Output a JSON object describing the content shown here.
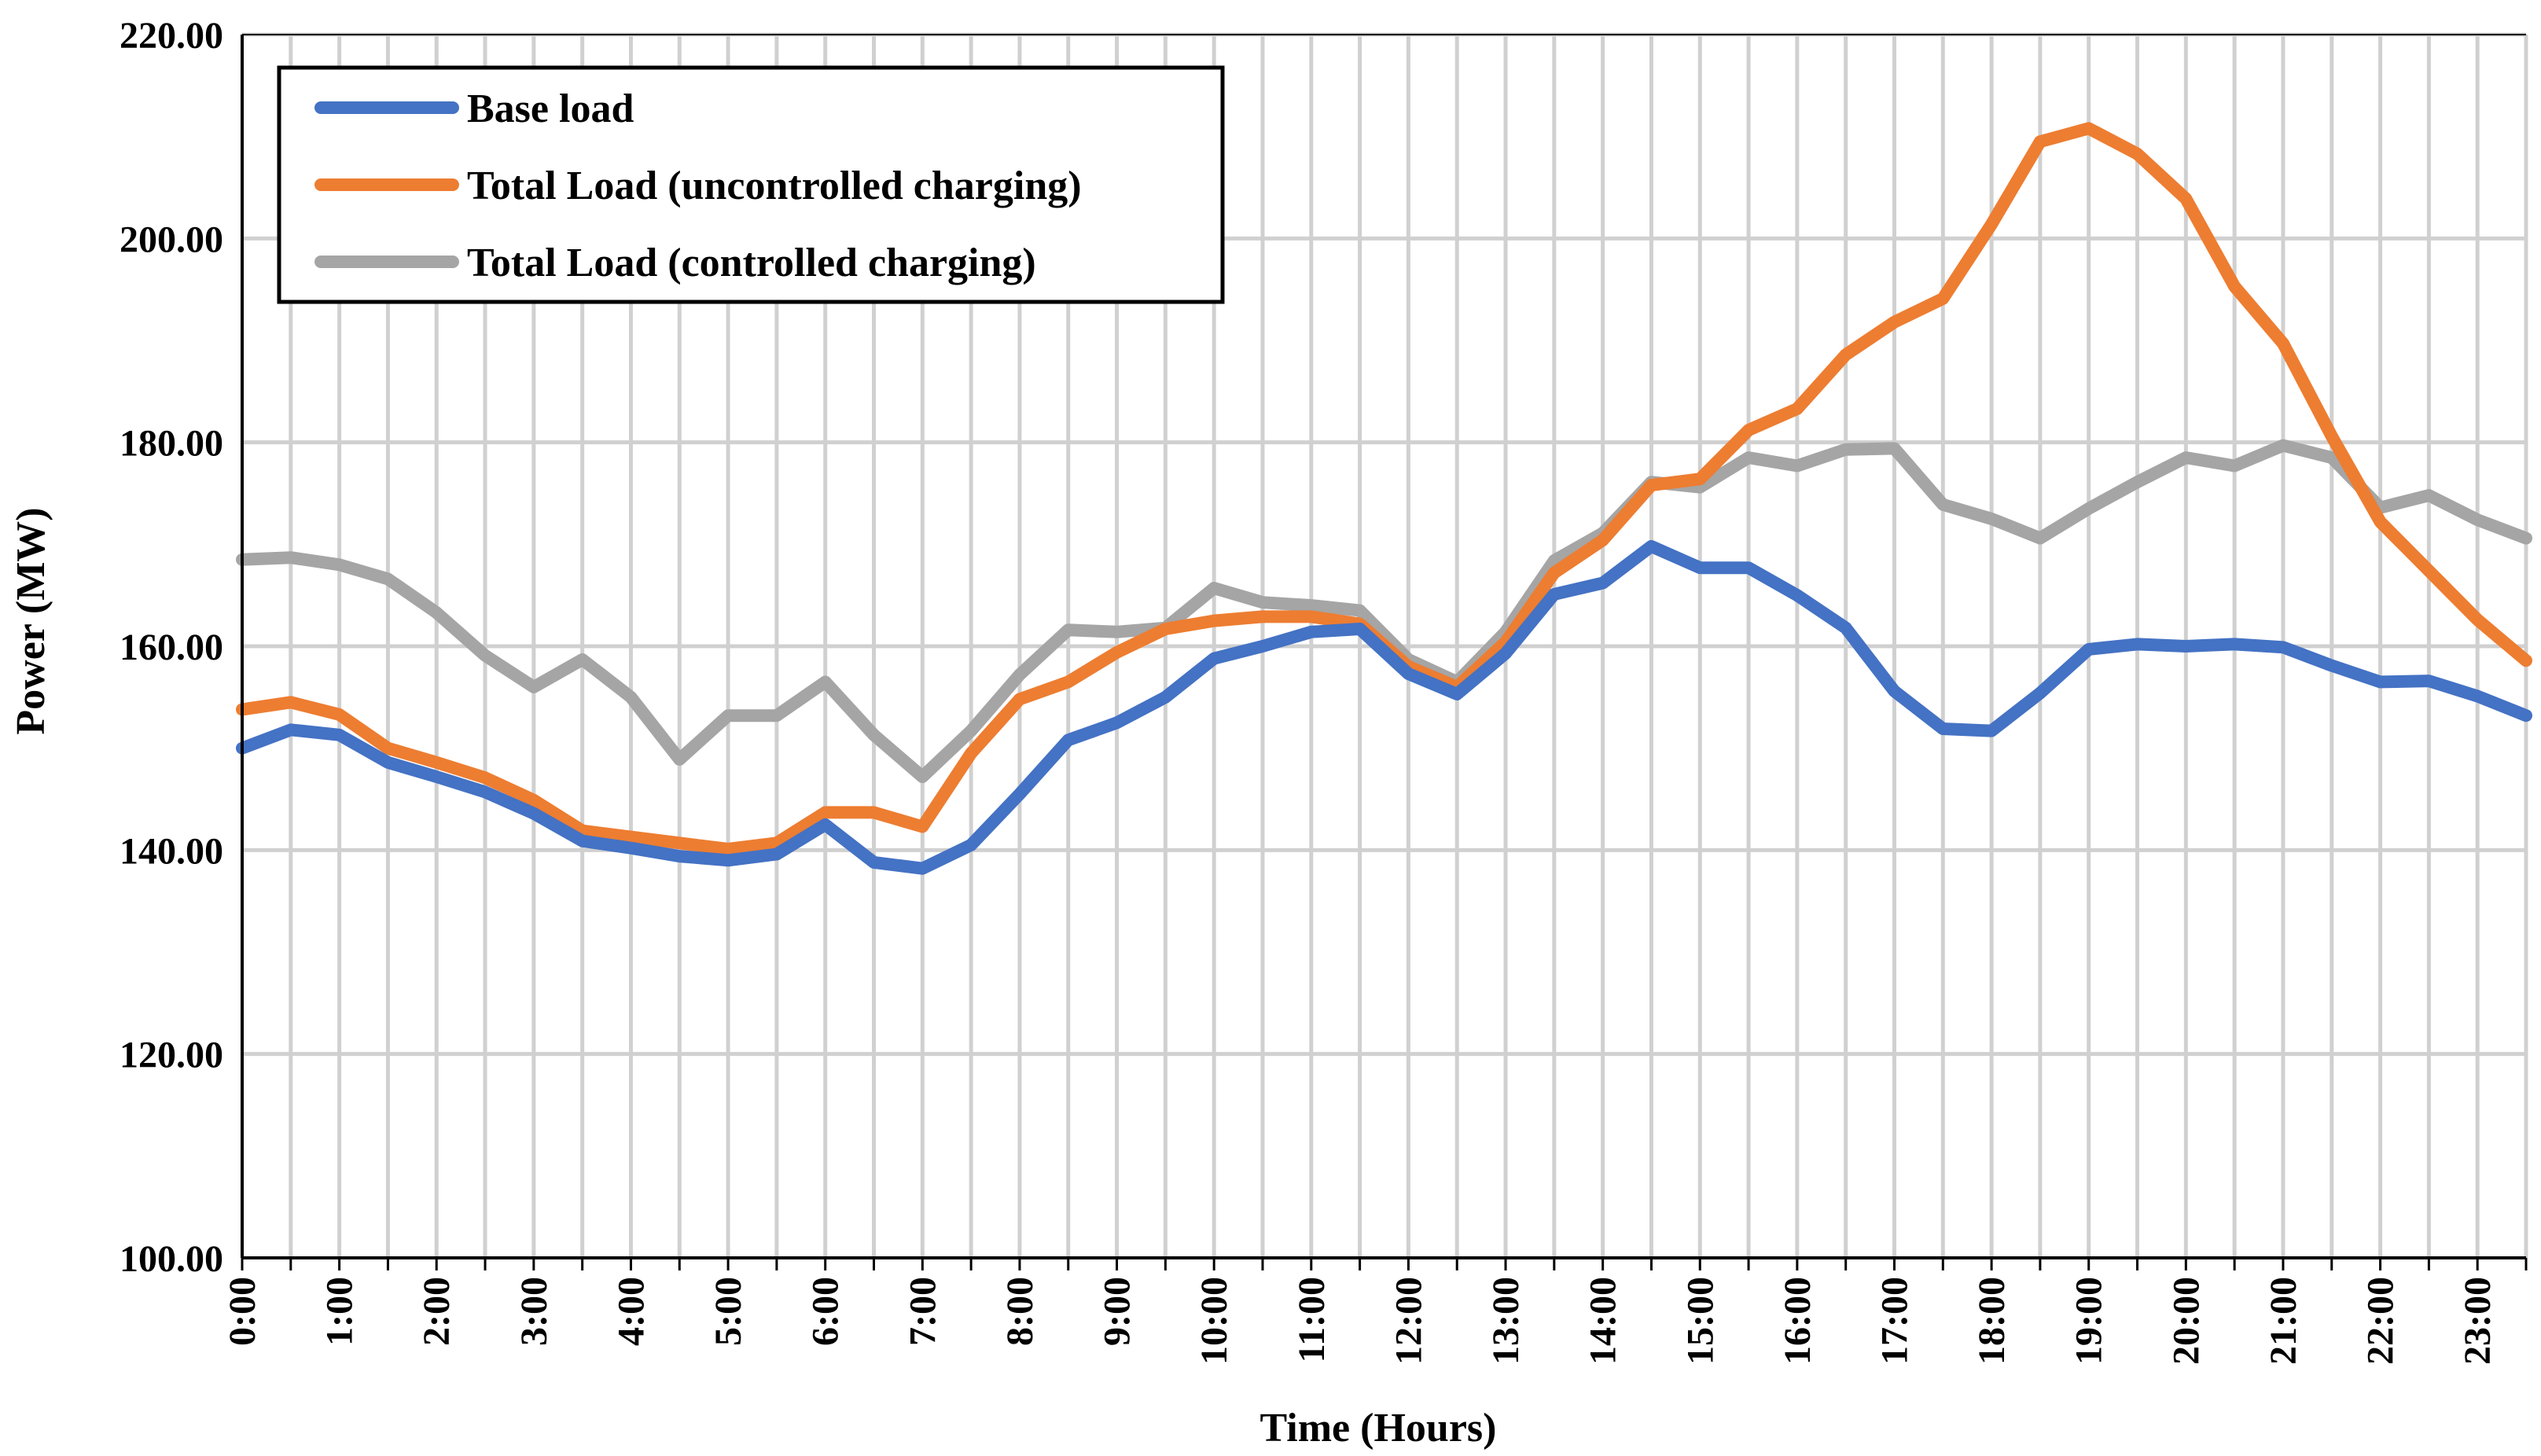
{
  "chart_data": {
    "type": "line",
    "title": "",
    "xlabel": "Time (Hours)",
    "ylabel": "Power (MW)",
    "ylim": [
      100,
      220
    ],
    "yticks": [
      "100.00",
      "120.00",
      "140.00",
      "160.00",
      "180.00",
      "200.00",
      "220.00"
    ],
    "ytick_values": [
      100,
      120,
      140,
      160,
      180,
      200,
      220
    ],
    "grid": true,
    "legend_position": "top-left",
    "x": [
      "0:00",
      "0:30",
      "1:00",
      "1:30",
      "2:00",
      "2:30",
      "3:00",
      "3:30",
      "4:00",
      "4:30",
      "5:00",
      "5:30",
      "6:00",
      "6:30",
      "7:00",
      "7:30",
      "8:00",
      "8:30",
      "9:00",
      "9:30",
      "10:00",
      "10:30",
      "11:00",
      "11:30",
      "12:00",
      "12:30",
      "13:00",
      "13:30",
      "14:00",
      "14:30",
      "15:00",
      "15:30",
      "16:00",
      "16:30",
      "17:00",
      "17:30",
      "18:00",
      "18:30",
      "19:00",
      "19:30",
      "20:00",
      "20:30",
      "21:00",
      "21:30",
      "22:00",
      "22:30",
      "23:00",
      "23:30"
    ],
    "xtick_labels": [
      "0:00",
      "1:00",
      "2:00",
      "3:00",
      "4:00",
      "5:00",
      "6:00",
      "7:00",
      "8:00",
      "9:00",
      "10:00",
      "11:00",
      "12:00",
      "13:00",
      "14:00",
      "15:00",
      "16:00",
      "17:00",
      "18:00",
      "19:00",
      "20:00",
      "21:00",
      "22:00",
      "23:00"
    ],
    "series": [
      {
        "name": "Base load",
        "color": "#4472C4",
        "values": [
          150.0,
          151.8,
          151.3,
          148.6,
          147.2,
          145.7,
          143.6,
          140.9,
          140.2,
          139.4,
          139.0,
          139.6,
          142.5,
          138.8,
          138.2,
          140.5,
          145.5,
          150.8,
          152.5,
          155.0,
          158.8,
          160.0,
          161.4,
          161.7,
          157.3,
          155.3,
          159.3,
          165.1,
          166.2,
          169.8,
          167.7,
          167.7,
          165.0,
          161.8,
          155.6,
          151.9,
          151.7,
          155.4,
          159.7,
          160.2,
          160.0,
          160.2,
          159.9,
          158.1,
          156.5,
          156.6,
          155.1,
          153.2
        ]
      },
      {
        "name": "Total Load (uncontrolled charging)",
        "color": "#ED7D31",
        "values": [
          153.8,
          154.5,
          153.3,
          150.0,
          148.6,
          147.1,
          144.9,
          141.9,
          141.3,
          140.7,
          140.1,
          140.7,
          143.7,
          143.7,
          142.3,
          149.5,
          154.8,
          156.5,
          159.4,
          161.7,
          162.5,
          162.9,
          162.9,
          162.2,
          158.0,
          156.0,
          160.4,
          167.2,
          170.4,
          175.8,
          176.4,
          181.2,
          183.3,
          188.6,
          191.8,
          194.1,
          201.4,
          209.5,
          210.8,
          208.3,
          203.9,
          195.3,
          189.7,
          180.6,
          172.2,
          167.4,
          162.6,
          158.6
        ]
      },
      {
        "name": "Total Load (controlled charging)",
        "color": "#A5A5A5",
        "values": [
          168.5,
          168.7,
          168.0,
          166.6,
          163.3,
          159.1,
          156.0,
          158.7,
          155.0,
          148.9,
          153.2,
          153.2,
          156.5,
          151.3,
          147.2,
          151.7,
          157.2,
          161.6,
          161.4,
          161.8,
          165.7,
          164.3,
          164.0,
          163.5,
          158.7,
          156.5,
          161.4,
          168.4,
          171.1,
          176.1,
          175.6,
          178.5,
          177.7,
          179.3,
          179.4,
          173.9,
          172.5,
          170.6,
          173.5,
          176.1,
          178.5,
          177.7,
          179.7,
          178.5,
          173.6,
          174.8,
          172.4,
          170.6
        ]
      }
    ]
  }
}
